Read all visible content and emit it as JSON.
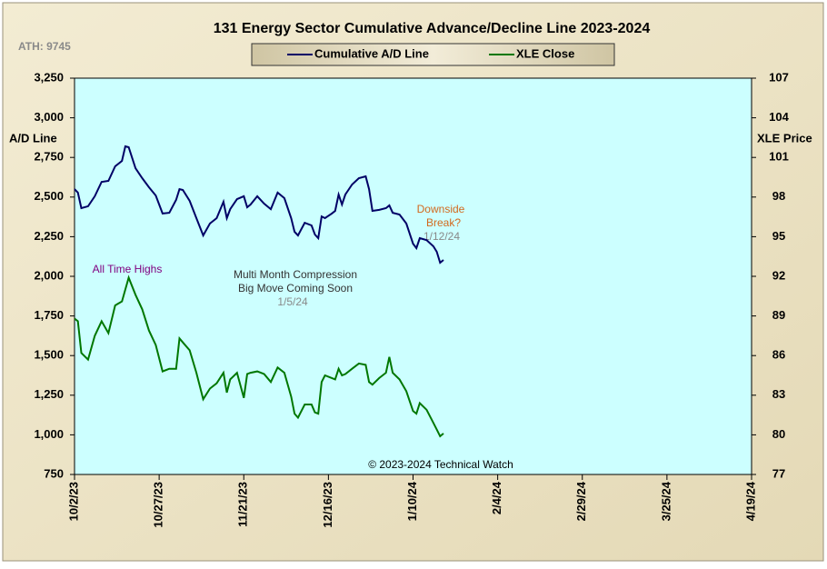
{
  "chart_data": {
    "type": "line",
    "title": "131 Energy Sector Cumulative Advance/Decline Line 2023-2024",
    "ylabel": "A/D Line",
    "y2label": "XLE Price",
    "annotations": [
      "ATH: 9745",
      "All Time Highs",
      "Multi Month Compression",
      "Big Move Coming Soon",
      "1/5/24",
      "Downside",
      "Break?",
      "1/12/24",
      "© 2023-2024  Technical Watch"
    ],
    "x": [
      "2023-10-02",
      "2023-10-03",
      "2023-10-04",
      "2023-10-06",
      "2023-10-08",
      "2023-10-10",
      "2023-10-12",
      "2023-10-14",
      "2023-10-16",
      "2023-10-17",
      "2023-10-18",
      "2023-10-20",
      "2023-10-22",
      "2023-10-24",
      "2023-10-26",
      "2023-10-28",
      "2023-10-30",
      "2023-11-01",
      "2023-11-02",
      "2023-11-03",
      "2023-11-05",
      "2023-11-07",
      "2023-11-09",
      "2023-11-11",
      "2023-11-13",
      "2023-11-15",
      "2023-11-16",
      "2023-11-17",
      "2023-11-19",
      "2023-11-21",
      "2023-11-22",
      "2023-11-23",
      "2023-11-25",
      "2023-11-27",
      "2023-11-29",
      "2023-12-01",
      "2023-12-03",
      "2023-12-05",
      "2023-12-06",
      "2023-12-07",
      "2023-12-09",
      "2023-12-11",
      "2023-12-12",
      "2023-12-13",
      "2023-12-14",
      "2023-12-15",
      "2023-12-17",
      "2023-12-18",
      "2023-12-19",
      "2023-12-20",
      "2023-12-21",
      "2023-12-23",
      "2023-12-25",
      "2023-12-27",
      "2023-12-28",
      "2023-12-29",
      "2023-12-31",
      "2024-01-02",
      "2024-01-03",
      "2024-01-04",
      "2024-01-06",
      "2024-01-08",
      "2024-01-10",
      "2024-01-11",
      "2024-01-12",
      "2024-01-14",
      "2024-01-16",
      "2024-01-17",
      "2024-01-18",
      "2024-01-19"
    ],
    "series": [
      {
        "name": "Cumulative A/D Line",
        "color": "#000066",
        "axis": "y",
        "values": [
          2550,
          2528,
          2430,
          2442,
          2505,
          2596,
          2602,
          2694,
          2728,
          2820,
          2814,
          2682,
          2619,
          2562,
          2510,
          2396,
          2401,
          2482,
          2550,
          2545,
          2476,
          2367,
          2258,
          2333,
          2367,
          2470,
          2367,
          2424,
          2487,
          2505,
          2436,
          2453,
          2505,
          2459,
          2424,
          2528,
          2493,
          2367,
          2281,
          2258,
          2338,
          2321,
          2264,
          2241,
          2378,
          2367,
          2396,
          2413,
          2516,
          2453,
          2516,
          2579,
          2619,
          2631,
          2550,
          2413,
          2419,
          2430,
          2447,
          2401,
          2390,
          2333,
          2206,
          2178,
          2241,
          2229,
          2189,
          2155,
          2086,
          2103
        ]
      },
      {
        "name": "XLE Close",
        "color": "#007700",
        "axis": "y2",
        "values": [
          88.8,
          88.6,
          86.2,
          85.7,
          87.5,
          88.6,
          87.7,
          89.8,
          90.1,
          91.0,
          91.9,
          90.6,
          89.5,
          87.9,
          86.8,
          84.8,
          85.0,
          85.0,
          87.3,
          87.0,
          86.4,
          84.7,
          82.7,
          83.5,
          83.9,
          84.7,
          83.2,
          84.2,
          84.7,
          82.8,
          84.6,
          84.7,
          84.8,
          84.6,
          84.0,
          85.1,
          84.7,
          82.9,
          81.6,
          81.3,
          82.3,
          82.3,
          81.7,
          81.6,
          84.0,
          84.5,
          84.3,
          84.2,
          85.0,
          84.5,
          84.6,
          85.0,
          85.4,
          85.3,
          84.0,
          83.8,
          84.3,
          84.7,
          85.9,
          84.7,
          84.2,
          83.3,
          81.8,
          81.6,
          82.4,
          81.9,
          80.9,
          80.4,
          79.9,
          80.1
        ]
      }
    ],
    "xlim": [
      "2023-10-02",
      "2024-04-19"
    ],
    "xticks": [
      {
        "value": "2023-10-02",
        "label": "10/2/23"
      },
      {
        "value": "2023-10-27",
        "label": "10/27/23"
      },
      {
        "value": "2023-11-21",
        "label": "11/21/23"
      },
      {
        "value": "2023-12-16",
        "label": "12/16/23"
      },
      {
        "value": "2024-01-10",
        "label": "1/10/24"
      },
      {
        "value": "2024-02-04",
        "label": "2/4/24"
      },
      {
        "value": "2024-02-29",
        "label": "2/29/24"
      },
      {
        "value": "2024-03-25",
        "label": "3/25/24"
      },
      {
        "value": "2024-04-19",
        "label": "4/19/24"
      }
    ],
    "ylim": [
      750,
      3250
    ],
    "yticks": [
      750,
      {
        "value": 1000,
        "label": "1,000"
      },
      {
        "value": 1250,
        "label": "1,250"
      },
      {
        "value": 1500,
        "label": "1,500"
      },
      {
        "value": 1750,
        "label": "1,750"
      },
      {
        "value": 2000,
        "label": "2,000"
      },
      {
        "value": 2250,
        "label": "2,250"
      },
      {
        "value": 2500,
        "label": "2,500"
      },
      {
        "value": 2750,
        "label": "2,750"
      },
      {
        "value": 3000,
        "label": "3,000"
      },
      {
        "value": 3250,
        "label": "3,250"
      }
    ],
    "y2lim": [
      77,
      107
    ],
    "y2ticks": [
      77,
      80,
      83,
      86,
      89,
      92,
      95,
      98,
      101,
      104,
      107
    ],
    "legend": "top",
    "grid": false
  }
}
